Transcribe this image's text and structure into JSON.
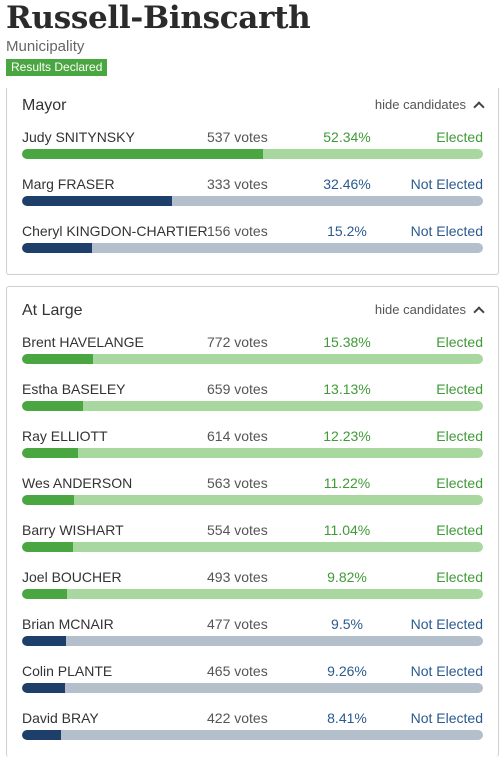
{
  "header": {
    "title": "Russell-Binscarth",
    "subtitle": "Municipality",
    "badge": "Results Declared"
  },
  "colors": {
    "elected_text": "#3f9a37",
    "elected_bar": "#4aa640",
    "elected_track": "#a8d89f",
    "not_elected_text": "#2b5a8f",
    "not_elected_bar": "#1f3f6b",
    "not_elected_track": "#b4bfcc"
  },
  "races": [
    {
      "title": "Mayor",
      "toggle_label": "hide candidates",
      "candidates": [
        {
          "name": "Judy SNITYNSKY",
          "votes": "537 votes",
          "percent": "52.34%",
          "status": "Elected",
          "share": 52.34,
          "elected": true
        },
        {
          "name": "Marg FRASER",
          "votes": "333 votes",
          "percent": "32.46%",
          "status": "Not Elected",
          "share": 32.46,
          "elected": false
        },
        {
          "name": "Cheryl KINGDON-CHARTIER",
          "votes": "156 votes",
          "percent": "15.2%",
          "status": "Not Elected",
          "share": 15.2,
          "elected": false
        }
      ]
    },
    {
      "title": "At Large",
      "toggle_label": "hide candidates",
      "candidates": [
        {
          "name": "Brent HAVELANGE",
          "votes": "772 votes",
          "percent": "15.38%",
          "status": "Elected",
          "share": 15.38,
          "elected": true
        },
        {
          "name": "Estha BASELEY",
          "votes": "659 votes",
          "percent": "13.13%",
          "status": "Elected",
          "share": 13.13,
          "elected": true
        },
        {
          "name": "Ray ELLIOTT",
          "votes": "614 votes",
          "percent": "12.23%",
          "status": "Elected",
          "share": 12.23,
          "elected": true
        },
        {
          "name": "Wes ANDERSON",
          "votes": "563 votes",
          "percent": "11.22%",
          "status": "Elected",
          "share": 11.22,
          "elected": true
        },
        {
          "name": "Barry WISHART",
          "votes": "554 votes",
          "percent": "11.04%",
          "status": "Elected",
          "share": 11.04,
          "elected": true
        },
        {
          "name": "Joel BOUCHER",
          "votes": "493 votes",
          "percent": "9.82%",
          "status": "Elected",
          "share": 9.82,
          "elected": true
        },
        {
          "name": "Brian MCNAIR",
          "votes": "477 votes",
          "percent": "9.5%",
          "status": "Not Elected",
          "share": 9.5,
          "elected": false
        },
        {
          "name": "Colin PLANTE",
          "votes": "465 votes",
          "percent": "9.26%",
          "status": "Not Elected",
          "share": 9.26,
          "elected": false
        },
        {
          "name": "David BRAY",
          "votes": "422 votes",
          "percent": "8.41%",
          "status": "Not Elected",
          "share": 8.41,
          "elected": false
        }
      ]
    }
  ]
}
